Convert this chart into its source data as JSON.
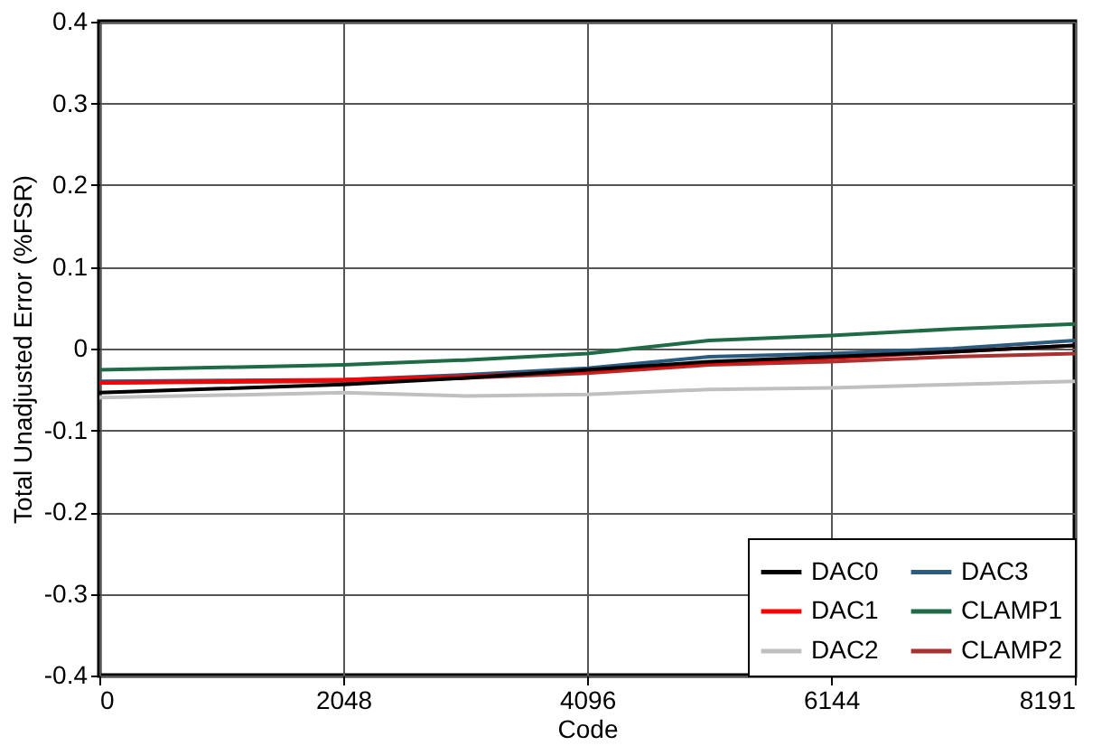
{
  "chart_data": {
    "type": "line",
    "xlabel": "Code",
    "ylabel": "Total Unadjusted Error (%FSR)",
    "x": [
      0,
      1024,
      2048,
      3072,
      4096,
      5120,
      6144,
      7168,
      8191
    ],
    "xlim": [
      0,
      8191
    ],
    "xticks": [
      0,
      2048,
      4096,
      6144,
      8191
    ],
    "ylim": [
      -0.4,
      0.4
    ],
    "yticks": [
      -0.4,
      -0.3,
      -0.2,
      -0.1,
      0,
      0.1,
      0.2,
      0.3,
      0.4
    ],
    "grid": true,
    "legend": "bottom right",
    "line_style": "solid",
    "marker": "none",
    "series": [
      {
        "name": "DAC0",
        "color": "#000000",
        "values": [
          -0.054,
          -0.049,
          -0.044,
          -0.036,
          -0.026,
          -0.016,
          -0.01,
          -0.004,
          0.004
        ]
      },
      {
        "name": "DAC1",
        "color": "#ff0000",
        "values": [
          -0.042,
          -0.04,
          -0.038,
          -0.034,
          -0.028,
          -0.018,
          -0.012,
          -0.004,
          0.004
        ]
      },
      {
        "name": "DAC2",
        "color": "#c0c0c0",
        "values": [
          -0.06,
          -0.057,
          -0.054,
          -0.058,
          -0.056,
          -0.05,
          -0.048,
          -0.044,
          -0.04
        ]
      },
      {
        "name": "DAC3",
        "color": "#2a5b80",
        "values": [
          -0.04,
          -0.039,
          -0.038,
          -0.032,
          -0.024,
          -0.01,
          -0.006,
          0,
          0.01
        ]
      },
      {
        "name": "CLAMP1",
        "color": "#1e6b45",
        "values": [
          -0.026,
          -0.023,
          -0.02,
          -0.014,
          -0.006,
          0.01,
          0.016,
          0.024,
          0.03
        ]
      },
      {
        "name": "CLAMP2",
        "color": "#a83232",
        "values": [
          -0.042,
          -0.041,
          -0.04,
          -0.036,
          -0.03,
          -0.02,
          -0.016,
          -0.01,
          -0.006
        ]
      }
    ]
  }
}
